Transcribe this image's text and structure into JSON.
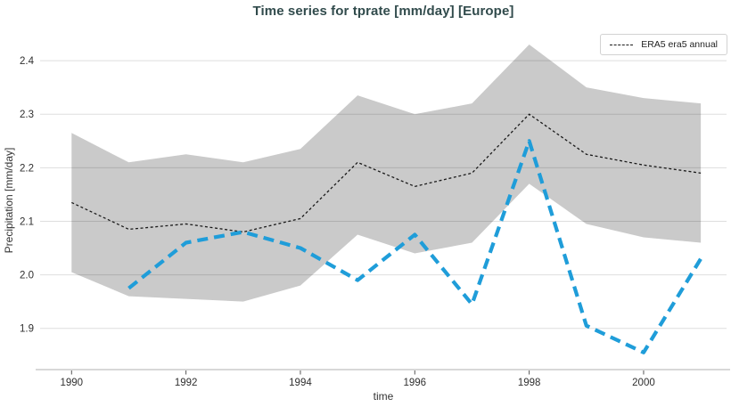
{
  "window": {
    "title": "Time series for tprate [mm/day] [Europe]"
  },
  "chart_data": {
    "type": "line",
    "title": "Time series for tprate [mm/day] [Europe]",
    "xlabel": "time",
    "ylabel": "Precipitation [mm/day]",
    "xlim": [
      1989.45,
      2001.45
    ],
    "ylim": [
      1.823,
      2.455
    ],
    "grid": "horizontal-only",
    "x_ticks": [
      1990,
      1992,
      1994,
      1996,
      1998,
      2000
    ],
    "y_ticks": [
      1.9,
      2.0,
      2.1,
      2.2,
      2.3,
      2.4
    ],
    "legend": {
      "position": "upper right",
      "entries": [
        {
          "label": "ERA5 era5 annual",
          "style": "dashed-fine",
          "color": "#1a1a1a"
        }
      ]
    },
    "band": {
      "description": "gray uncertainty band around ERA5 annual line",
      "color": "#cacaca",
      "x": [
        1990,
        1991,
        1992,
        1993,
        1994,
        1995,
        1996,
        1997,
        1998,
        1999,
        2000,
        2001
      ],
      "upper": [
        2.265,
        2.21,
        2.225,
        2.21,
        2.235,
        2.335,
        2.3,
        2.32,
        2.43,
        2.35,
        2.33,
        2.32
      ],
      "lower": [
        2.005,
        1.96,
        1.955,
        1.95,
        1.98,
        2.075,
        2.04,
        2.06,
        2.17,
        2.095,
        2.07,
        2.06
      ]
    },
    "series": [
      {
        "name": "ERA5 era5 annual",
        "color": "#1a1a1a",
        "dash": "dashed-fine",
        "width": 1.3,
        "x": [
          1990,
          1991,
          1992,
          1993,
          1994,
          1995,
          1996,
          1997,
          1998,
          1999,
          2000,
          2001
        ],
        "values": [
          2.135,
          2.085,
          2.095,
          2.08,
          2.105,
          2.21,
          2.165,
          2.19,
          2.3,
          2.225,
          2.205,
          2.19
        ]
      },
      {
        "name": "blue-dashed-series",
        "color": "#1f9dd9",
        "dash": "dashed-wide",
        "width": 4.2,
        "x": [
          1991,
          1992,
          1993,
          1994,
          1995,
          1996,
          1997,
          1998,
          1999,
          2000,
          2001
        ],
        "values": [
          1.975,
          2.06,
          2.08,
          2.05,
          1.99,
          2.075,
          1.945,
          2.25,
          1.905,
          1.855,
          2.03
        ]
      }
    ],
    "colors": {
      "title": "#314b4c",
      "band": "#cacaca",
      "gridline_over_white": "#dedede",
      "axis_spine": "#d8d8d8",
      "tick_text": "#2f2f2f"
    }
  }
}
